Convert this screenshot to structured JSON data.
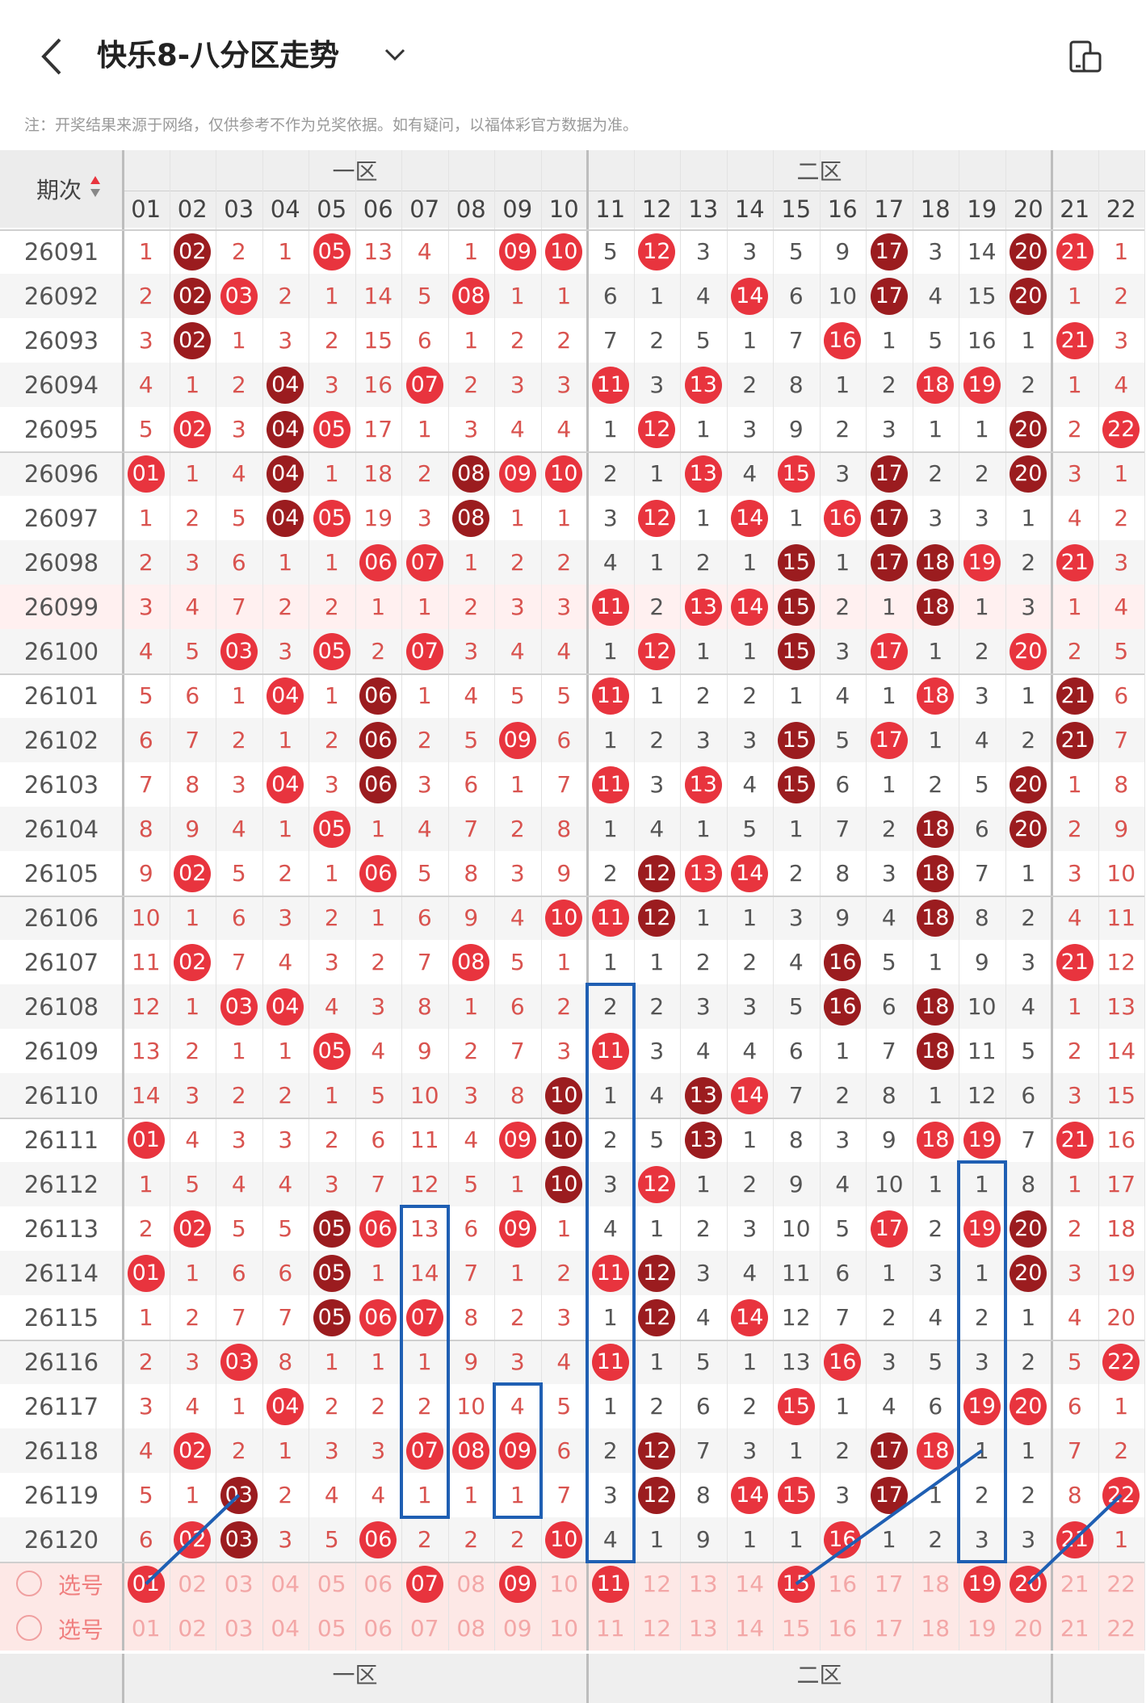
{
  "header": {
    "title": "快乐8-八分区走势",
    "back_icon": "back-arrow-icon",
    "dropdown_icon": "chevron-down-icon",
    "rotate_icon": "screen-rotate-icon"
  },
  "note": "注：开奖结果来源于网络，仅供参考不作为兑奖依据。如有疑问，以福体彩官方数据为准。",
  "table": {
    "issue_header": "期次",
    "sort_icon": "sort-arrows-icon",
    "zones": [
      "一区",
      "二区"
    ],
    "columns": [
      "01",
      "02",
      "03",
      "04",
      "05",
      "06",
      "07",
      "08",
      "09",
      "10",
      "11",
      "12",
      "13",
      "14",
      "15",
      "16",
      "17",
      "18",
      "19",
      "20",
      "21",
      "22"
    ],
    "rows": [
      {
        "issue": "26091",
        "v": [
          "1",
          "02",
          "2",
          "1",
          "05",
          "13",
          "4",
          "1",
          "09",
          "10",
          "5",
          "12",
          "3",
          "3",
          "5",
          "9",
          "17",
          "3",
          "14",
          "20",
          "21",
          "1"
        ]
      },
      {
        "issue": "26092",
        "v": [
          "2",
          "02",
          "03",
          "2",
          "1",
          "14",
          "5",
          "08",
          "1",
          "1",
          "6",
          "1",
          "4",
          "14",
          "6",
          "10",
          "17",
          "4",
          "15",
          "20",
          "1",
          "2"
        ]
      },
      {
        "issue": "26093",
        "v": [
          "3",
          "02",
          "1",
          "3",
          "2",
          "15",
          "6",
          "1",
          "2",
          "2",
          "7",
          "2",
          "5",
          "1",
          "7",
          "16",
          "1",
          "5",
          "16",
          "1",
          "21",
          "3"
        ]
      },
      {
        "issue": "26094",
        "v": [
          "4",
          "1",
          "2",
          "04",
          "3",
          "16",
          "07",
          "2",
          "3",
          "3",
          "11",
          "3",
          "13",
          "2",
          "8",
          "1",
          "2",
          "18",
          "19",
          "2",
          "1",
          "4"
        ]
      },
      {
        "issue": "26095",
        "v": [
          "5",
          "02",
          "3",
          "04",
          "05",
          "17",
          "1",
          "3",
          "4",
          "4",
          "1",
          "12",
          "1",
          "3",
          "9",
          "2",
          "3",
          "1",
          "1",
          "20",
          "2",
          "22"
        ]
      },
      {
        "issue": "26096",
        "v": [
          "01",
          "1",
          "4",
          "04",
          "1",
          "18",
          "2",
          "08",
          "09",
          "10",
          "2",
          "1",
          "13",
          "4",
          "15",
          "3",
          "17",
          "2",
          "2",
          "20",
          "3",
          "1"
        ]
      },
      {
        "issue": "26097",
        "v": [
          "1",
          "2",
          "5",
          "04",
          "05",
          "19",
          "3",
          "08",
          "1",
          "1",
          "3",
          "12",
          "1",
          "14",
          "1",
          "16",
          "17",
          "3",
          "3",
          "1",
          "4",
          "2"
        ]
      },
      {
        "issue": "26098",
        "v": [
          "2",
          "3",
          "6",
          "1",
          "1",
          "06",
          "07",
          "1",
          "2",
          "2",
          "4",
          "1",
          "2",
          "1",
          "15",
          "1",
          "17",
          "18",
          "19",
          "2",
          "21",
          "3"
        ]
      },
      {
        "issue": "26099",
        "v": [
          "3",
          "4",
          "7",
          "2",
          "2",
          "1",
          "1",
          "2",
          "3",
          "3",
          "11",
          "2",
          "13",
          "14",
          "15",
          "2",
          "1",
          "18",
          "1",
          "3",
          "1",
          "4"
        ]
      },
      {
        "issue": "26100",
        "v": [
          "4",
          "5",
          "03",
          "3",
          "05",
          "2",
          "07",
          "3",
          "4",
          "4",
          "1",
          "12",
          "1",
          "1",
          "15",
          "3",
          "17",
          "1",
          "2",
          "20",
          "2",
          "5"
        ]
      },
      {
        "issue": "26101",
        "v": [
          "5",
          "6",
          "1",
          "04",
          "1",
          "06",
          "1",
          "4",
          "5",
          "5",
          "11",
          "1",
          "2",
          "2",
          "1",
          "4",
          "1",
          "18",
          "3",
          "1",
          "21",
          "6"
        ]
      },
      {
        "issue": "26102",
        "v": [
          "6",
          "7",
          "2",
          "1",
          "2",
          "06",
          "2",
          "5",
          "09",
          "6",
          "1",
          "2",
          "3",
          "3",
          "15",
          "5",
          "17",
          "1",
          "4",
          "2",
          "21",
          "7"
        ]
      },
      {
        "issue": "26103",
        "v": [
          "7",
          "8",
          "3",
          "04",
          "3",
          "06",
          "3",
          "6",
          "1",
          "7",
          "11",
          "3",
          "13",
          "4",
          "15",
          "6",
          "1",
          "2",
          "5",
          "20",
          "1",
          "8"
        ]
      },
      {
        "issue": "26104",
        "v": [
          "8",
          "9",
          "4",
          "1",
          "05",
          "1",
          "4",
          "7",
          "2",
          "8",
          "1",
          "4",
          "1",
          "5",
          "1",
          "7",
          "2",
          "18",
          "6",
          "20",
          "2",
          "9"
        ]
      },
      {
        "issue": "26105",
        "v": [
          "9",
          "02",
          "5",
          "2",
          "1",
          "06",
          "5",
          "8",
          "3",
          "9",
          "2",
          "12",
          "13",
          "14",
          "2",
          "8",
          "3",
          "18",
          "7",
          "1",
          "3",
          "10"
        ]
      },
      {
        "issue": "26106",
        "v": [
          "10",
          "1",
          "6",
          "3",
          "2",
          "1",
          "6",
          "9",
          "4",
          "10",
          "11",
          "12",
          "1",
          "1",
          "3",
          "9",
          "4",
          "18",
          "8",
          "2",
          "4",
          "11"
        ]
      },
      {
        "issue": "26107",
        "v": [
          "11",
          "02",
          "7",
          "4",
          "3",
          "2",
          "7",
          "08",
          "5",
          "1",
          "1",
          "1",
          "2",
          "2",
          "4",
          "16",
          "5",
          "1",
          "9",
          "3",
          "21",
          "12"
        ]
      },
      {
        "issue": "26108",
        "v": [
          "12",
          "1",
          "03",
          "04",
          "4",
          "3",
          "8",
          "1",
          "6",
          "2",
          "2",
          "2",
          "3",
          "3",
          "5",
          "16",
          "6",
          "18",
          "10",
          "4",
          "1",
          "13"
        ]
      },
      {
        "issue": "26109",
        "v": [
          "13",
          "2",
          "1",
          "1",
          "05",
          "4",
          "9",
          "2",
          "7",
          "3",
          "11",
          "3",
          "4",
          "4",
          "6",
          "1",
          "7",
          "18",
          "11",
          "5",
          "2",
          "14"
        ]
      },
      {
        "issue": "26110",
        "v": [
          "14",
          "3",
          "2",
          "2",
          "1",
          "5",
          "10",
          "3",
          "8",
          "10",
          "1",
          "4",
          "13",
          "14",
          "7",
          "2",
          "8",
          "1",
          "12",
          "6",
          "3",
          "15"
        ]
      },
      {
        "issue": "26111",
        "v": [
          "01",
          "4",
          "3",
          "3",
          "2",
          "6",
          "11",
          "4",
          "09",
          "10",
          "2",
          "5",
          "13",
          "1",
          "8",
          "3",
          "9",
          "18",
          "19",
          "7",
          "21",
          "16"
        ]
      },
      {
        "issue": "26112",
        "v": [
          "1",
          "5",
          "4",
          "4",
          "3",
          "7",
          "12",
          "5",
          "1",
          "10",
          "3",
          "12",
          "1",
          "2",
          "9",
          "4",
          "10",
          "1",
          "1",
          "8",
          "1",
          "17"
        ]
      },
      {
        "issue": "26113",
        "v": [
          "2",
          "02",
          "5",
          "5",
          "05",
          "06",
          "13",
          "6",
          "09",
          "1",
          "4",
          "1",
          "2",
          "3",
          "10",
          "5",
          "17",
          "2",
          "19",
          "20",
          "2",
          "18"
        ]
      },
      {
        "issue": "26114",
        "v": [
          "01",
          "1",
          "6",
          "6",
          "05",
          "1",
          "14",
          "7",
          "1",
          "2",
          "11",
          "12",
          "3",
          "4",
          "11",
          "6",
          "1",
          "3",
          "1",
          "20",
          "3",
          "19"
        ]
      },
      {
        "issue": "26115",
        "v": [
          "1",
          "2",
          "7",
          "7",
          "05",
          "06",
          "07",
          "8",
          "2",
          "3",
          "1",
          "12",
          "4",
          "14",
          "12",
          "7",
          "2",
          "4",
          "2",
          "1",
          "4",
          "20"
        ]
      },
      {
        "issue": "26116",
        "v": [
          "2",
          "3",
          "03",
          "8",
          "1",
          "1",
          "1",
          "9",
          "3",
          "4",
          "11",
          "1",
          "5",
          "1",
          "13",
          "16",
          "3",
          "5",
          "3",
          "2",
          "5",
          "22"
        ]
      },
      {
        "issue": "26117",
        "v": [
          "3",
          "4",
          "1",
          "04",
          "2",
          "2",
          "2",
          "10",
          "4",
          "5",
          "1",
          "2",
          "6",
          "2",
          "15",
          "1",
          "4",
          "6",
          "19",
          "20",
          "6",
          "1"
        ]
      },
      {
        "issue": "26118",
        "v": [
          "4",
          "02",
          "2",
          "1",
          "3",
          "3",
          "07",
          "08",
          "09",
          "6",
          "2",
          "12",
          "7",
          "3",
          "1",
          "2",
          "17",
          "18",
          "1",
          "1",
          "7",
          "2"
        ]
      },
      {
        "issue": "26119",
        "v": [
          "5",
          "1",
          "03",
          "2",
          "4",
          "4",
          "1",
          "1",
          "1",
          "7",
          "3",
          "12",
          "8",
          "14",
          "15",
          "3",
          "17",
          "1",
          "2",
          "2",
          "8",
          "22"
        ]
      },
      {
        "issue": "26120",
        "v": [
          "6",
          "02",
          "03",
          "3",
          "5",
          "06",
          "2",
          "2",
          "2",
          "10",
          "4",
          "1",
          "9",
          "1",
          "1",
          "16",
          "1",
          "2",
          "3",
          "3",
          "21",
          "1"
        ]
      }
    ],
    "select_rows": [
      {
        "label": "选号",
        "picked": [
          "01",
          "07",
          "09",
          "11",
          "15",
          "19",
          "20"
        ]
      },
      {
        "label": "选号",
        "picked": []
      }
    ],
    "colors": {
      "ball_red": "#e8343e",
      "ball_dark": "#9b1c1f",
      "zone_header_bg": "#efefef",
      "highlight_box": "#1f5fb3"
    }
  }
}
